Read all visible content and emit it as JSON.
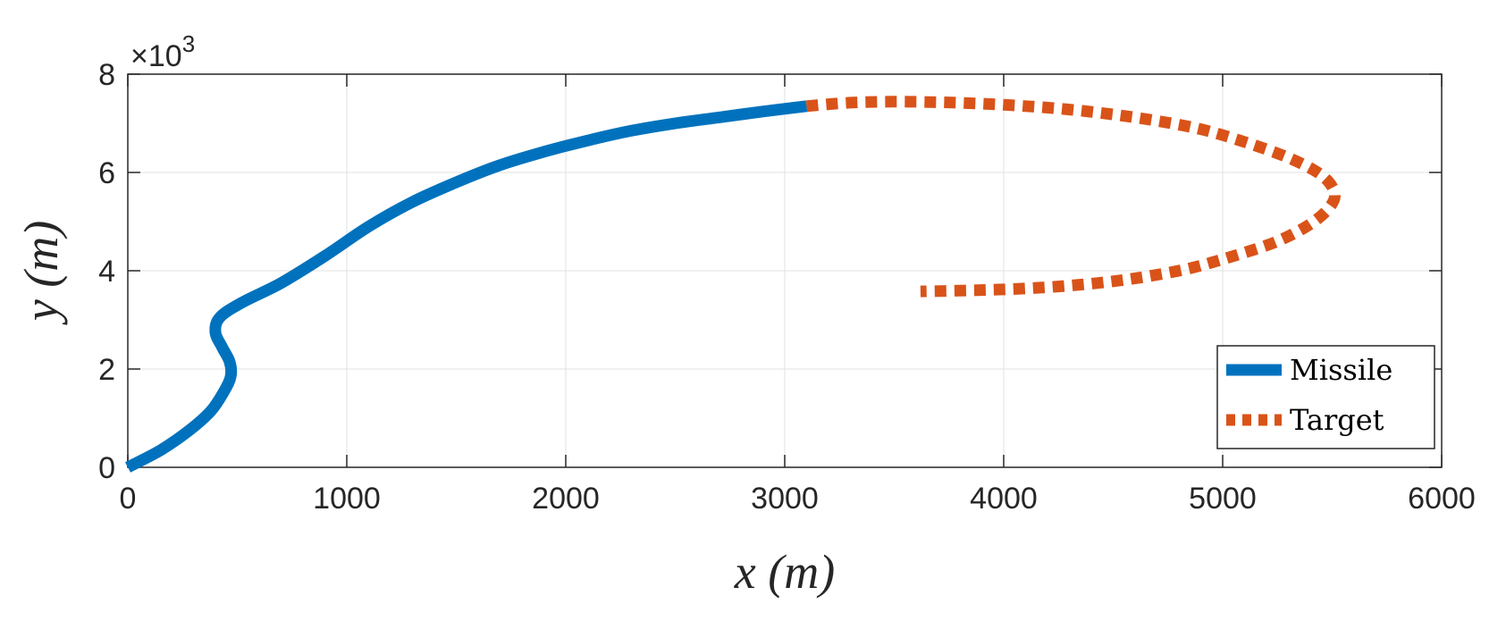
{
  "chart_data": {
    "type": "line",
    "title": "",
    "xlabel": "x (m)",
    "ylabel": "y (m)",
    "xlim": [
      0,
      6000
    ],
    "ylim": [
      0,
      8
    ],
    "x_ticks": [
      "0",
      "1000",
      "2000",
      "3000",
      "4000",
      "5000",
      "6000"
    ],
    "y_ticks": [
      "0",
      "2",
      "4",
      "6",
      "8"
    ],
    "y_multiplier": "×10",
    "y_multiplier_exponent": "3",
    "grid": true,
    "legend_position": "bottom-right",
    "series": [
      {
        "name": "Missile",
        "color": "#0072BD",
        "style": "solid",
        "x": [
          0,
          150,
          280,
          380,
          440,
          470,
          465,
          430,
          400,
          420,
          520,
          700,
          900,
          1100,
          1300,
          1500,
          1700,
          1900,
          2100,
          2300,
          2500,
          2700,
          2900,
          3100
        ],
        "y": [
          0,
          0.35,
          0.75,
          1.15,
          1.55,
          1.85,
          2.15,
          2.45,
          2.75,
          3.05,
          3.35,
          3.75,
          4.3,
          4.9,
          5.4,
          5.8,
          6.15,
          6.42,
          6.65,
          6.85,
          7.0,
          7.12,
          7.24,
          7.35
        ]
      },
      {
        "name": "Target",
        "color": "#D95319",
        "style": "dotted",
        "x": [
          3100,
          3300,
          3500,
          3700,
          3900,
          4100,
          4300,
          4500,
          4700,
          4900,
          5100,
          5300,
          5450,
          5510,
          5490,
          5400,
          5250,
          5050,
          4850,
          4650,
          4450,
          4250,
          4050,
          3850,
          3620
        ],
        "y": [
          7.35,
          7.42,
          7.44,
          7.43,
          7.4,
          7.35,
          7.28,
          7.18,
          7.05,
          6.88,
          6.62,
          6.3,
          5.95,
          5.6,
          5.3,
          4.95,
          4.6,
          4.3,
          4.05,
          3.88,
          3.76,
          3.68,
          3.63,
          3.6,
          3.58
        ]
      }
    ]
  }
}
